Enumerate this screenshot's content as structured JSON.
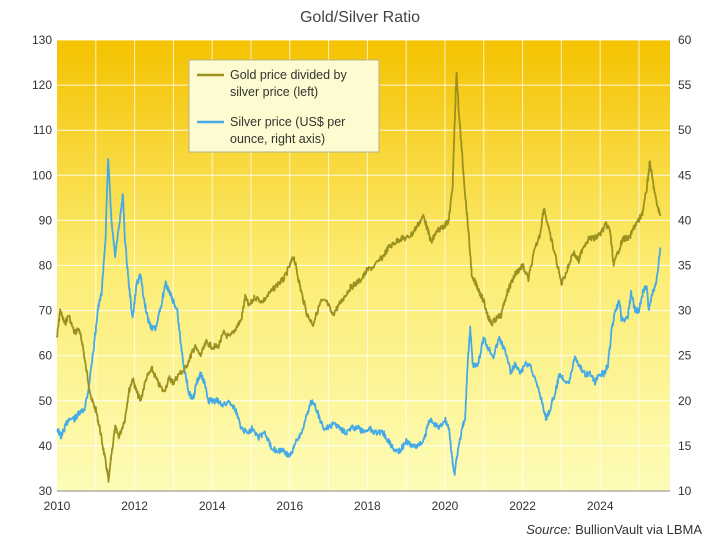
{
  "chart_data": {
    "type": "line",
    "title": "Gold/Silver Ratio",
    "source_label": "Source:",
    "source_text": "BullionVault via LBMA",
    "grid": true,
    "legend_position": "top-left",
    "x_ticks": [
      "2010",
      "2012",
      "2014",
      "2016",
      "2018",
      "2020",
      "2022",
      "2024"
    ],
    "xlim": [
      2010,
      2025.8
    ],
    "y_left": {
      "ylim": [
        30,
        130
      ],
      "ticks": [
        "30",
        "40",
        "50",
        "60",
        "70",
        "80",
        "90",
        "100",
        "110",
        "120",
        "130"
      ]
    },
    "y_right": {
      "ylim": [
        10,
        60
      ],
      "ticks": [
        "10",
        "15",
        "20",
        "25",
        "30",
        "35",
        "40",
        "45",
        "50",
        "55",
        "60"
      ]
    },
    "colors": {
      "ratio": "#9b9120",
      "silver": "#46aae6",
      "bg_top": "#f4c200",
      "bg_bottom": "#fdfcb8"
    },
    "series": [
      {
        "name_lines": [
          "Gold price divided by",
          "silver price (left)"
        ],
        "axis": "left",
        "points": [
          [
            2010.0,
            64
          ],
          [
            2010.08,
            70
          ],
          [
            2010.2,
            67
          ],
          [
            2010.3,
            69
          ],
          [
            2010.45,
            65
          ],
          [
            2010.55,
            66
          ],
          [
            2010.65,
            63
          ],
          [
            2010.75,
            57
          ],
          [
            2010.9,
            50
          ],
          [
            2011.0,
            48
          ],
          [
            2011.1,
            44
          ],
          [
            2011.2,
            39
          ],
          [
            2011.3,
            34
          ],
          [
            2011.33,
            32
          ],
          [
            2011.4,
            38
          ],
          [
            2011.5,
            44
          ],
          [
            2011.6,
            42
          ],
          [
            2011.75,
            46
          ],
          [
            2011.85,
            52
          ],
          [
            2011.95,
            55
          ],
          [
            2012.05,
            52
          ],
          [
            2012.15,
            50
          ],
          [
            2012.3,
            55
          ],
          [
            2012.45,
            57
          ],
          [
            2012.6,
            54
          ],
          [
            2012.75,
            52
          ],
          [
            2012.9,
            55
          ],
          [
            2013.0,
            54
          ],
          [
            2013.15,
            56
          ],
          [
            2013.3,
            57
          ],
          [
            2013.45,
            60
          ],
          [
            2013.55,
            62
          ],
          [
            2013.7,
            60
          ],
          [
            2013.85,
            63
          ],
          [
            2014.0,
            62
          ],
          [
            2014.15,
            62
          ],
          [
            2014.3,
            65
          ],
          [
            2014.45,
            64
          ],
          [
            2014.6,
            66
          ],
          [
            2014.75,
            68
          ],
          [
            2014.85,
            73
          ],
          [
            2014.95,
            71
          ],
          [
            2015.1,
            73
          ],
          [
            2015.3,
            72
          ],
          [
            2015.5,
            74
          ],
          [
            2015.7,
            76
          ],
          [
            2015.85,
            77
          ],
          [
            2016.0,
            80
          ],
          [
            2016.1,
            82
          ],
          [
            2016.2,
            78
          ],
          [
            2016.3,
            74
          ],
          [
            2016.45,
            69
          ],
          [
            2016.6,
            67
          ],
          [
            2016.8,
            72
          ],
          [
            2016.95,
            72
          ],
          [
            2017.1,
            69
          ],
          [
            2017.25,
            71
          ],
          [
            2017.4,
            73
          ],
          [
            2017.55,
            75
          ],
          [
            2017.7,
            76
          ],
          [
            2017.85,
            77
          ],
          [
            2018.0,
            79
          ],
          [
            2018.2,
            80
          ],
          [
            2018.4,
            82
          ],
          [
            2018.55,
            84
          ],
          [
            2018.7,
            85
          ],
          [
            2018.85,
            86
          ],
          [
            2019.0,
            86
          ],
          [
            2019.15,
            87
          ],
          [
            2019.3,
            89
          ],
          [
            2019.45,
            91
          ],
          [
            2019.55,
            88
          ],
          [
            2019.65,
            85
          ],
          [
            2019.75,
            87
          ],
          [
            2019.85,
            88
          ],
          [
            2020.0,
            89
          ],
          [
            2020.1,
            90
          ],
          [
            2020.2,
            98
          ],
          [
            2020.25,
            112
          ],
          [
            2020.3,
            123
          ],
          [
            2020.35,
            115
          ],
          [
            2020.42,
            107
          ],
          [
            2020.5,
            98
          ],
          [
            2020.6,
            88
          ],
          [
            2020.7,
            77
          ],
          [
            2020.8,
            76
          ],
          [
            2020.9,
            74
          ],
          [
            2021.0,
            72
          ],
          [
            2021.1,
            69
          ],
          [
            2021.2,
            67
          ],
          [
            2021.3,
            68
          ],
          [
            2021.45,
            69
          ],
          [
            2021.6,
            74
          ],
          [
            2021.7,
            76
          ],
          [
            2021.8,
            78
          ],
          [
            2021.9,
            79
          ],
          [
            2022.0,
            80
          ],
          [
            2022.15,
            77
          ],
          [
            2022.3,
            83
          ],
          [
            2022.45,
            87
          ],
          [
            2022.55,
            93
          ],
          [
            2022.7,
            87
          ],
          [
            2022.85,
            82
          ],
          [
            2023.0,
            76
          ],
          [
            2023.15,
            79
          ],
          [
            2023.3,
            83
          ],
          [
            2023.45,
            81
          ],
          [
            2023.55,
            84
          ],
          [
            2023.7,
            86
          ],
          [
            2023.85,
            86
          ],
          [
            2024.0,
            87
          ],
          [
            2024.15,
            89
          ],
          [
            2024.25,
            88
          ],
          [
            2024.35,
            80
          ],
          [
            2024.5,
            84
          ],
          [
            2024.6,
            86
          ],
          [
            2024.75,
            86
          ],
          [
            2024.9,
            89
          ],
          [
            2025.0,
            90
          ],
          [
            2025.1,
            92
          ],
          [
            2025.2,
            97
          ],
          [
            2025.28,
            103
          ],
          [
            2025.35,
            99
          ],
          [
            2025.45,
            94
          ],
          [
            2025.55,
            91
          ]
        ]
      },
      {
        "name_lines": [
          "Silver price (US$ per",
          "ounce, right axis)"
        ],
        "axis": "right",
        "points": [
          [
            2010.0,
            17
          ],
          [
            2010.1,
            16
          ],
          [
            2010.2,
            17
          ],
          [
            2010.3,
            18
          ],
          [
            2010.45,
            18
          ],
          [
            2010.55,
            18.5
          ],
          [
            2010.7,
            19
          ],
          [
            2010.8,
            21
          ],
          [
            2010.95,
            26
          ],
          [
            2011.05,
            30
          ],
          [
            2011.15,
            32
          ],
          [
            2011.25,
            38
          ],
          [
            2011.32,
            47
          ],
          [
            2011.4,
            40
          ],
          [
            2011.5,
            36
          ],
          [
            2011.62,
            40
          ],
          [
            2011.7,
            43
          ],
          [
            2011.75,
            38
          ],
          [
            2011.85,
            33
          ],
          [
            2011.95,
            29
          ],
          [
            2012.05,
            33
          ],
          [
            2012.15,
            34
          ],
          [
            2012.25,
            31
          ],
          [
            2012.35,
            29
          ],
          [
            2012.45,
            28
          ],
          [
            2012.55,
            28
          ],
          [
            2012.7,
            31
          ],
          [
            2012.8,
            33
          ],
          [
            2012.9,
            32
          ],
          [
            2013.0,
            31
          ],
          [
            2013.1,
            30
          ],
          [
            2013.2,
            26
          ],
          [
            2013.3,
            23
          ],
          [
            2013.4,
            21
          ],
          [
            2013.5,
            20
          ],
          [
            2013.6,
            22
          ],
          [
            2013.7,
            23
          ],
          [
            2013.8,
            22
          ],
          [
            2013.9,
            20
          ],
          [
            2014.0,
            20
          ],
          [
            2014.15,
            20
          ],
          [
            2014.3,
            19.5
          ],
          [
            2014.45,
            20
          ],
          [
            2014.6,
            19
          ],
          [
            2014.75,
            17
          ],
          [
            2014.9,
            16.5
          ],
          [
            2015.05,
            17
          ],
          [
            2015.2,
            16
          ],
          [
            2015.35,
            16.5
          ],
          [
            2015.5,
            15
          ],
          [
            2015.65,
            14.5
          ],
          [
            2015.8,
            14.5
          ],
          [
            2015.95,
            14
          ],
          [
            2016.05,
            14
          ],
          [
            2016.15,
            15.5
          ],
          [
            2016.3,
            16.5
          ],
          [
            2016.45,
            18.5
          ],
          [
            2016.55,
            20
          ],
          [
            2016.7,
            19
          ],
          [
            2016.85,
            17
          ],
          [
            2017.0,
            17
          ],
          [
            2017.15,
            17.5
          ],
          [
            2017.3,
            17
          ],
          [
            2017.45,
            16.5
          ],
          [
            2017.6,
            17
          ],
          [
            2017.75,
            17
          ],
          [
            2017.9,
            16.5
          ],
          [
            2018.05,
            17
          ],
          [
            2018.2,
            16.5
          ],
          [
            2018.4,
            16.5
          ],
          [
            2018.55,
            15.5
          ],
          [
            2018.7,
            14.5
          ],
          [
            2018.85,
            14.5
          ],
          [
            2019.0,
            15.5
          ],
          [
            2019.15,
            15
          ],
          [
            2019.3,
            15
          ],
          [
            2019.45,
            15.5
          ],
          [
            2019.6,
            18
          ],
          [
            2019.7,
            17.5
          ],
          [
            2019.85,
            17
          ],
          [
            2020.0,
            18
          ],
          [
            2020.1,
            17
          ],
          [
            2020.2,
            13
          ],
          [
            2020.25,
            12
          ],
          [
            2020.35,
            15
          ],
          [
            2020.45,
            17
          ],
          [
            2020.52,
            18
          ],
          [
            2020.58,
            24
          ],
          [
            2020.65,
            28
          ],
          [
            2020.72,
            24
          ],
          [
            2020.85,
            24
          ],
          [
            2020.95,
            26
          ],
          [
            2021.0,
            27
          ],
          [
            2021.1,
            26
          ],
          [
            2021.25,
            25
          ],
          [
            2021.4,
            27
          ],
          [
            2021.5,
            26
          ],
          [
            2021.6,
            25
          ],
          [
            2021.7,
            23
          ],
          [
            2021.8,
            24
          ],
          [
            2021.95,
            23
          ],
          [
            2022.05,
            24
          ],
          [
            2022.2,
            24
          ],
          [
            2022.35,
            22
          ],
          [
            2022.5,
            20
          ],
          [
            2022.6,
            18
          ],
          [
            2022.7,
            19
          ],
          [
            2022.85,
            21
          ],
          [
            2022.95,
            23
          ],
          [
            2023.05,
            22.5
          ],
          [
            2023.2,
            22
          ],
          [
            2023.35,
            25
          ],
          [
            2023.45,
            24
          ],
          [
            2023.6,
            23
          ],
          [
            2023.75,
            23
          ],
          [
            2023.85,
            22
          ],
          [
            2024.0,
            23
          ],
          [
            2024.1,
            23
          ],
          [
            2024.2,
            24
          ],
          [
            2024.3,
            28
          ],
          [
            2024.4,
            30
          ],
          [
            2024.5,
            31
          ],
          [
            2024.55,
            29
          ],
          [
            2024.7,
            29
          ],
          [
            2024.8,
            32
          ],
          [
            2024.9,
            30
          ],
          [
            2025.0,
            30
          ],
          [
            2025.1,
            32
          ],
          [
            2025.2,
            33
          ],
          [
            2025.25,
            30
          ],
          [
            2025.35,
            32
          ],
          [
            2025.45,
            33
          ],
          [
            2025.55,
            37
          ]
        ]
      }
    ]
  }
}
